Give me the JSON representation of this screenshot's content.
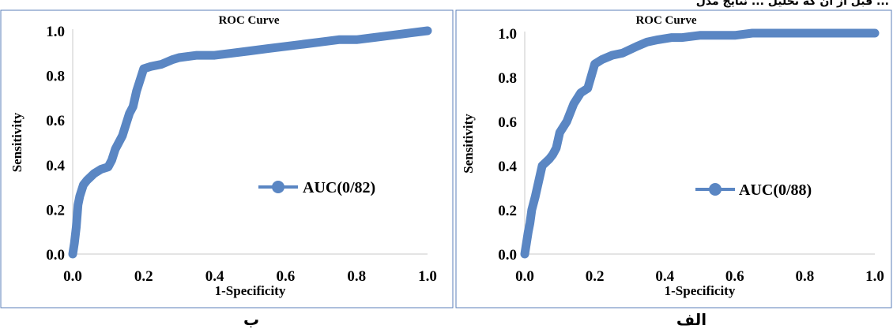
{
  "header_text": "قبل از آن که تحلیل ... نتایج مدل ...",
  "captions": {
    "left": "ب",
    "right": "الف"
  },
  "chart_data": [
    {
      "type": "line",
      "title": "ROC Curve",
      "xlabel": "1-Specificity",
      "ylabel": "Sensitivity",
      "xlim": [
        0,
        1
      ],
      "ylim": [
        0,
        1
      ],
      "xticks": [
        "0.0",
        "0.2",
        "0.4",
        "0.6",
        "0.8",
        "1.0"
      ],
      "yticks": [
        "0.0",
        "0.2",
        "0.4",
        "0.6",
        "0.8",
        "1.0"
      ],
      "grid": false,
      "legend_position": "right-middle",
      "color": "#5a86c3",
      "series": [
        {
          "name": "AUC(0/82)",
          "x": [
            0.0,
            0.005,
            0.01,
            0.015,
            0.02,
            0.03,
            0.04,
            0.06,
            0.08,
            0.1,
            0.11,
            0.12,
            0.14,
            0.15,
            0.16,
            0.17,
            0.18,
            0.19,
            0.2,
            0.22,
            0.25,
            0.28,
            0.3,
            0.35,
            0.4,
            0.45,
            0.5,
            0.55,
            0.6,
            0.65,
            0.7,
            0.75,
            0.8,
            0.85,
            0.9,
            0.95,
            1.0
          ],
          "y": [
            0.0,
            0.05,
            0.12,
            0.22,
            0.26,
            0.31,
            0.33,
            0.36,
            0.38,
            0.39,
            0.42,
            0.47,
            0.53,
            0.58,
            0.63,
            0.66,
            0.73,
            0.78,
            0.83,
            0.84,
            0.85,
            0.87,
            0.88,
            0.89,
            0.89,
            0.9,
            0.91,
            0.92,
            0.93,
            0.94,
            0.95,
            0.96,
            0.96,
            0.97,
            0.98,
            0.99,
            1.0
          ]
        }
      ]
    },
    {
      "type": "line",
      "title": "ROC Curve",
      "xlabel": "1-Specificity",
      "ylabel": "Sensitivity",
      "xlim": [
        0,
        1
      ],
      "ylim": [
        0,
        1
      ],
      "xticks": [
        "0.0",
        "0.2",
        "0.4",
        "0.6",
        "0.8",
        "1.0"
      ],
      "yticks": [
        "0.0",
        "0.2",
        "0.4",
        "0.6",
        "0.8",
        "1.0"
      ],
      "grid": false,
      "legend_position": "right-middle",
      "color": "#5a86c3",
      "series": [
        {
          "name": "AUC(0/88)",
          "x": [
            0.0,
            0.005,
            0.01,
            0.015,
            0.02,
            0.03,
            0.04,
            0.05,
            0.07,
            0.08,
            0.09,
            0.1,
            0.12,
            0.14,
            0.16,
            0.18,
            0.2,
            0.22,
            0.25,
            0.28,
            0.32,
            0.35,
            0.38,
            0.42,
            0.45,
            0.5,
            0.55,
            0.6,
            0.65,
            0.7,
            0.8,
            0.9,
            1.0
          ],
          "y": [
            0.0,
            0.05,
            0.1,
            0.14,
            0.2,
            0.26,
            0.33,
            0.4,
            0.43,
            0.45,
            0.48,
            0.55,
            0.6,
            0.68,
            0.73,
            0.75,
            0.86,
            0.88,
            0.9,
            0.91,
            0.94,
            0.96,
            0.97,
            0.98,
            0.98,
            0.99,
            0.99,
            0.99,
            1.0,
            1.0,
            1.0,
            1.0,
            1.0
          ]
        }
      ]
    }
  ]
}
